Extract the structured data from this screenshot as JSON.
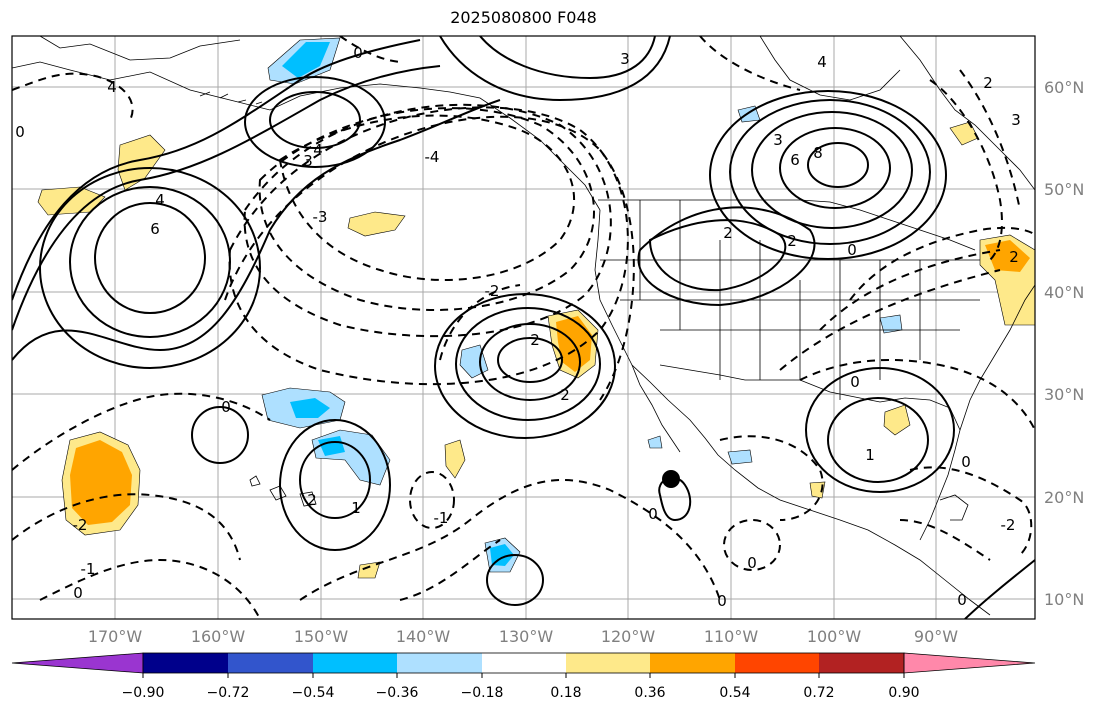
{
  "title": "2025080800 F048",
  "lon_labels": [
    "170°W",
    "160°W",
    "150°W",
    "140°W",
    "130°W",
    "120°W",
    "110°W",
    "100°W",
    "90°W"
  ],
  "lat_labels": [
    "60°N",
    "50°N",
    "40°N",
    "30°N",
    "20°N",
    "10°N"
  ],
  "colorbar": {
    "ticks": [
      "−0.90",
      "−0.72",
      "−0.54",
      "−0.36",
      "−0.18",
      "0.18",
      "0.36",
      "0.54",
      "0.72",
      "0.90"
    ],
    "colors": [
      "#9a35d0",
      "#00008b",
      "#3255cc",
      "#00bfff",
      "#aee0ff",
      "#ffffff",
      "#fee98a",
      "#ffa500",
      "#ff4500",
      "#b22222",
      "#ff88aa"
    ]
  },
  "contour_labels": [
    "2",
    "4",
    "6",
    "8",
    "-2",
    "-4",
    "-3",
    "-1",
    "0",
    "1",
    "3"
  ],
  "marker": "filled-circle"
}
